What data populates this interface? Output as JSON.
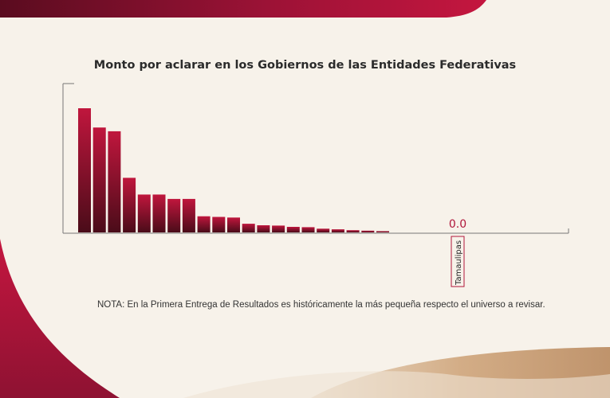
{
  "chart_data": {
    "type": "bar",
    "title": "Monto por aclarar en los Gobiernos de las Entidades Federativas",
    "xlabel": "",
    "ylabel": "",
    "bars_relative": [
      1.0,
      0.845,
      0.815,
      0.44,
      0.305,
      0.305,
      0.27,
      0.27,
      0.13,
      0.125,
      0.12,
      0.07,
      0.058,
      0.055,
      0.045,
      0.042,
      0.03,
      0.025,
      0.018,
      0.014,
      0.01,
      0.0,
      0.0,
      0.0,
      0.0,
      0.0,
      0.0,
      0.0,
      0.0,
      0.0,
      0.0,
      0.0
    ],
    "highlight": {
      "label": "Tamaulipas",
      "index": 25,
      "value_label": "0.0"
    },
    "colors": {
      "bar_top": "#c0163d",
      "bar_bottom": "#4a0c19",
      "highlight": "#b0163b",
      "axis": "#777777"
    }
  },
  "note": "NOTA: En la Primera Entrega de Resultados es históricamente la más pequeña respecto el universo a revisar.",
  "colors": {
    "brand": "#b3123d",
    "gold": "#c8a27a"
  }
}
